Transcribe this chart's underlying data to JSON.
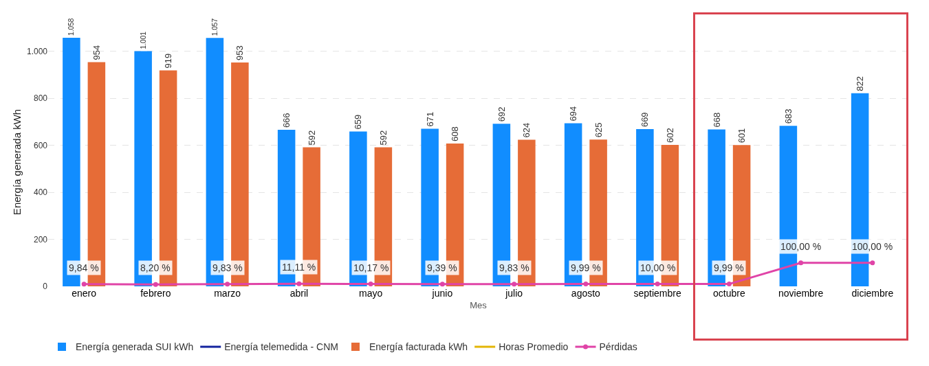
{
  "chart_data": {
    "type": "bar",
    "xlabel": "Mes",
    "ylabel": "Energía generada kWh",
    "categories": [
      "enero",
      "febrero",
      "marzo",
      "abril",
      "mayo",
      "junio",
      "julio",
      "agosto",
      "septiembre",
      "octubre",
      "noviembre",
      "diciembre"
    ],
    "series": [
      {
        "name": "Energía generada SUI kWh",
        "color": "#118dff",
        "values": [
          1058,
          1001,
          1057,
          666,
          659,
          671,
          692,
          694,
          669,
          668,
          683,
          822
        ],
        "value_labels": [
          "1.058",
          "1.001",
          "1.057",
          "666",
          "659",
          "671",
          "692",
          "694",
          "669",
          "668",
          "683",
          "822"
        ]
      },
      {
        "name": "Energía telemedida - CNM",
        "type": "line",
        "color": "#12239e",
        "values": [
          null,
          null,
          null,
          null,
          null,
          null,
          null,
          null,
          null,
          null,
          null,
          null
        ]
      },
      {
        "name": "Energía facturada kWh",
        "color": "#e66c37",
        "values": [
          954,
          919,
          953,
          592,
          592,
          608,
          624,
          625,
          602,
          601,
          null,
          null
        ],
        "value_labels": [
          "954",
          "919",
          "953",
          "592",
          "592",
          "608",
          "624",
          "625",
          "602",
          "601",
          null,
          null
        ]
      },
      {
        "name": "Horas Promedio",
        "type": "line",
        "color": "#e3b505",
        "values": [
          null,
          null,
          null,
          null,
          null,
          null,
          null,
          null,
          null,
          null,
          null,
          null
        ]
      },
      {
        "name": "Pérdidas",
        "type": "line",
        "color": "#e044a7",
        "marker": "circle",
        "values": [
          9.84,
          8.2,
          9.83,
          11.11,
          10.17,
          9.39,
          9.83,
          9.99,
          10.0,
          9.99,
          100.0,
          100.0
        ],
        "value_labels": [
          "9,84 %",
          "8,20 %",
          "9,83 %",
          "11,11 %",
          "10,17 %",
          "9,39 %",
          "9,83 %",
          "9,99 %",
          "10,00 %",
          "9,99 %",
          "100,00 %",
          "100,00 %"
        ]
      }
    ],
    "ylim": [
      0,
      1058
    ],
    "yticks": [
      0,
      200,
      400,
      600,
      800,
      {
        "value": 1000,
        "label": "1.000"
      }
    ],
    "grid": "y",
    "legend": "bottom left"
  }
}
